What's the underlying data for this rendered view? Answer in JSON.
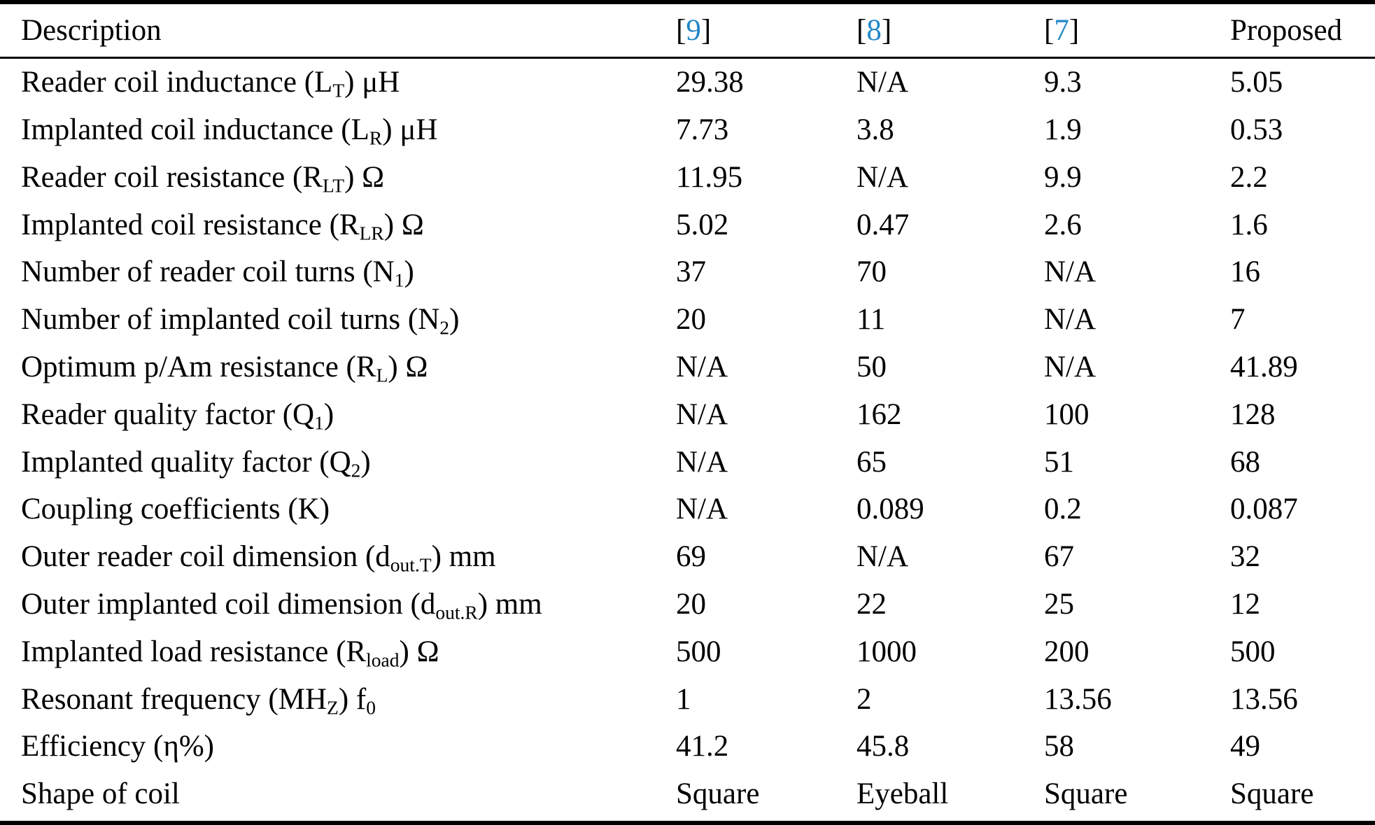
{
  "colors": {
    "citation_blue": "#2187C6",
    "text": "#000000",
    "background": "#ffffff"
  },
  "table": {
    "columns": [
      {
        "name": "description",
        "segments": [
          {
            "t": "Description"
          }
        ]
      },
      {
        "name": "ref-9",
        "segments": [
          {
            "t": "["
          },
          {
            "t": "9",
            "ref": true
          },
          {
            "t": "]"
          }
        ]
      },
      {
        "name": "ref-8",
        "segments": [
          {
            "t": "["
          },
          {
            "t": "8",
            "ref": true
          },
          {
            "t": "]"
          }
        ]
      },
      {
        "name": "ref-7",
        "segments": [
          {
            "t": "["
          },
          {
            "t": "7",
            "ref": true
          },
          {
            "t": "]"
          }
        ]
      },
      {
        "name": "proposed",
        "segments": [
          {
            "t": "Proposed"
          }
        ]
      }
    ],
    "rows": [
      {
        "label": [
          {
            "t": "Reader coil inductance (L"
          },
          {
            "t": "T",
            "sub": true
          },
          {
            "t": ") μH"
          }
        ],
        "values": [
          "29.38",
          "N/A",
          "9.3",
          "5.05"
        ]
      },
      {
        "label": [
          {
            "t": "Implanted coil inductance (L"
          },
          {
            "t": "R",
            "sub": true
          },
          {
            "t": ") μH"
          }
        ],
        "values": [
          "7.73",
          "3.8",
          "1.9",
          "0.53"
        ]
      },
      {
        "label": [
          {
            "t": "Reader coil resistance (R"
          },
          {
            "t": "LT",
            "sub": true
          },
          {
            "t": ") Ω"
          }
        ],
        "values": [
          "11.95",
          "N/A",
          "9.9",
          "2.2"
        ]
      },
      {
        "label": [
          {
            "t": "Implanted coil resistance (R"
          },
          {
            "t": "LR",
            "sub": true
          },
          {
            "t": ") Ω"
          }
        ],
        "values": [
          "5.02",
          "0.47",
          "2.6",
          "1.6"
        ]
      },
      {
        "label": [
          {
            "t": "Number of reader coil turns (N"
          },
          {
            "t": "1",
            "sub": true
          },
          {
            "t": ")"
          }
        ],
        "values": [
          "37",
          "70",
          "N/A",
          "16"
        ]
      },
      {
        "label": [
          {
            "t": "Number of implanted coil turns (N"
          },
          {
            "t": "2",
            "sub": true
          },
          {
            "t": ")"
          }
        ],
        "values": [
          "20",
          "11",
          "N/A",
          "7"
        ]
      },
      {
        "label": [
          {
            "t": "Optimum p/Am resistance (R"
          },
          {
            "t": "L",
            "sub": true
          },
          {
            "t": ") Ω"
          }
        ],
        "values": [
          "N/A",
          "50",
          "N/A",
          "41.89"
        ]
      },
      {
        "label": [
          {
            "t": "Reader quality factor (Q"
          },
          {
            "t": "1",
            "sub": true
          },
          {
            "t": ")"
          }
        ],
        "values": [
          "N/A",
          "162",
          "100",
          "128"
        ]
      },
      {
        "label": [
          {
            "t": "Implanted quality factor (Q"
          },
          {
            "t": "2",
            "sub": true
          },
          {
            "t": ")"
          }
        ],
        "values": [
          "N/A",
          "65",
          "51",
          "68"
        ]
      },
      {
        "label": [
          {
            "t": "Coupling coefficients (K)"
          }
        ],
        "values": [
          "N/A",
          "0.089",
          "0.2",
          "0.087"
        ]
      },
      {
        "label": [
          {
            "t": "Outer reader coil dimension (d"
          },
          {
            "t": "out.T",
            "sub": true
          },
          {
            "t": ") mm"
          }
        ],
        "values": [
          "69",
          "N/A",
          "67",
          "32"
        ]
      },
      {
        "label": [
          {
            "t": "Outer implanted coil dimension (d"
          },
          {
            "t": "out.R",
            "sub": true
          },
          {
            "t": ") mm"
          }
        ],
        "values": [
          "20",
          "22",
          "25",
          "12"
        ]
      },
      {
        "label": [
          {
            "t": "Implanted load resistance (R"
          },
          {
            "t": "load",
            "sub": true
          },
          {
            "t": ") Ω"
          }
        ],
        "values": [
          "500",
          "1000",
          "200",
          "500"
        ]
      },
      {
        "label": [
          {
            "t": "Resonant frequency (MH"
          },
          {
            "t": "Z",
            "sub": true
          },
          {
            "t": ") f"
          },
          {
            "t": "0",
            "sub": true
          }
        ],
        "values": [
          "1",
          "2",
          "13.56",
          "13.56"
        ]
      },
      {
        "label": [
          {
            "t": "Efficiency (η%)"
          }
        ],
        "values": [
          "41.2",
          "45.8",
          "58",
          "49"
        ]
      },
      {
        "label": [
          {
            "t": "Shape of coil"
          }
        ],
        "values": [
          "Square",
          "Eyeball",
          "Square",
          "Square"
        ]
      }
    ]
  }
}
